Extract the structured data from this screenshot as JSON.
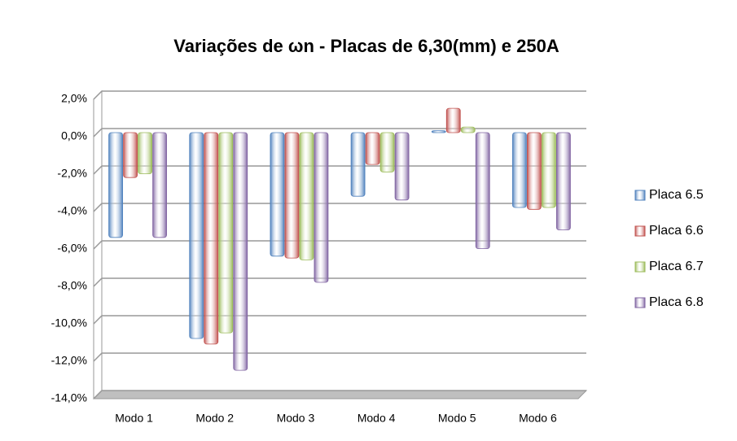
{
  "chart_data": {
    "type": "bar",
    "title": "Variações de ωn - Placas de 6,30(mm) e 250A",
    "categories": [
      "Modo 1",
      "Modo 2",
      "Modo 3",
      "Modo 4",
      "Modo 5",
      "Modo 6"
    ],
    "series": [
      {
        "name": "Placa 6.5",
        "color": "#4f81bd",
        "values": [
          -5.6,
          -11.0,
          -6.6,
          -3.4,
          0.1,
          -4.0
        ]
      },
      {
        "name": "Placa 6.6",
        "color": "#c0504d",
        "values": [
          -2.4,
          -11.3,
          -6.7,
          -1.7,
          1.3,
          -4.1
        ]
      },
      {
        "name": "Placa 6.7",
        "color": "#9bbb59",
        "values": [
          -2.2,
          -10.7,
          -6.8,
          -2.1,
          0.3,
          -4.0
        ]
      },
      {
        "name": "Placa 6.8",
        "color": "#8064a2",
        "values": [
          -5.6,
          -12.7,
          -8.0,
          -3.6,
          -6.2,
          -5.2
        ]
      }
    ],
    "ylim": [
      -14,
      2
    ],
    "yticks": [
      {
        "value": 2,
        "label": "2,0%"
      },
      {
        "value": 0,
        "label": "0,0%"
      },
      {
        "value": -2,
        "label": "-2,0%"
      },
      {
        "value": -4,
        "label": "-4,0%"
      },
      {
        "value": -6,
        "label": "-6,0%"
      },
      {
        "value": -8,
        "label": "-8,0%"
      },
      {
        "value": -10,
        "label": "-10,0%"
      },
      {
        "value": -12,
        "label": "-12,0%"
      },
      {
        "value": -14,
        "label": "-14,0%"
      }
    ],
    "grid": true,
    "legend": "right"
  }
}
